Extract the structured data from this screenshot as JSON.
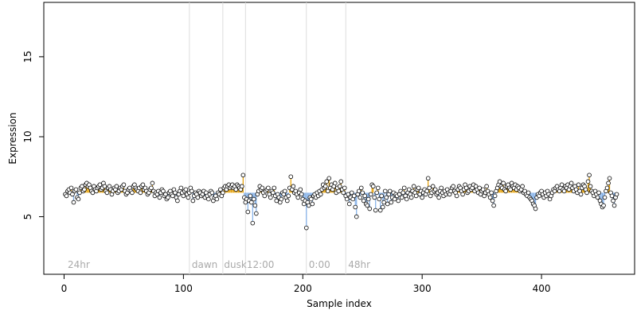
{
  "chart_data": {
    "type": "scatter",
    "xlabel": "Sample index",
    "ylabel": "Expression",
    "xlim": [
      -17,
      478
    ],
    "ylim": [
      1.4,
      18.4
    ],
    "xticks": [
      0,
      100,
      200,
      300,
      400
    ],
    "yticks": [
      5,
      10,
      15
    ],
    "point_color": "#ffffff",
    "point_edge": "#000000",
    "stem_baseline": 6.5,
    "stem_up_color": "#e69f00",
    "stem_down_color": "#7faee8",
    "vlines": [
      105,
      133,
      152,
      203,
      236
    ],
    "vline_color": "#dddddd",
    "annotations": [
      {
        "x": 3,
        "y": 2,
        "label": "24hr"
      },
      {
        "x": 107,
        "y": 2,
        "label": "dawn"
      },
      {
        "x": 134,
        "y": 2,
        "label": "dusk"
      },
      {
        "x": 153,
        "y": 2,
        "label": "12:00"
      },
      {
        "x": 205,
        "y": 2,
        "label": "0:00"
      },
      {
        "x": 238,
        "y": 2,
        "label": "48hr"
      }
    ],
    "x": [
      1,
      2,
      3,
      4,
      5,
      6,
      7,
      8,
      9,
      10,
      11,
      12,
      13,
      14,
      15,
      16,
      17,
      18,
      19,
      20,
      21,
      22,
      23,
      24,
      25,
      26,
      27,
      28,
      29,
      30,
      31,
      32,
      33,
      34,
      35,
      36,
      37,
      38,
      39,
      40,
      41,
      42,
      43,
      44,
      45,
      46,
      47,
      48,
      49,
      50,
      51,
      52,
      53,
      54,
      55,
      56,
      57,
      58,
      59,
      60,
      61,
      62,
      63,
      64,
      65,
      66,
      67,
      68,
      69,
      70,
      71,
      72,
      73,
      74,
      75,
      76,
      77,
      78,
      79,
      80,
      81,
      82,
      83,
      84,
      85,
      86,
      87,
      88,
      89,
      90,
      91,
      92,
      93,
      94,
      95,
      96,
      97,
      98,
      99,
      100,
      101,
      102,
      103,
      104,
      105,
      106,
      107,
      108,
      109,
      110,
      111,
      112,
      113,
      114,
      115,
      116,
      117,
      118,
      119,
      120,
      121,
      122,
      123,
      124,
      125,
      126,
      127,
      128,
      129,
      130,
      131,
      132,
      133,
      134,
      135,
      136,
      137,
      138,
      139,
      140,
      141,
      142,
      143,
      144,
      145,
      146,
      147,
      148,
      149,
      150,
      151,
      152,
      153,
      154,
      155,
      156,
      157,
      158,
      159,
      160,
      161,
      162,
      163,
      164,
      165,
      166,
      167,
      168,
      169,
      170,
      171,
      172,
      173,
      174,
      175,
      176,
      177,
      178,
      179,
      180,
      181,
      182,
      183,
      184,
      185,
      186,
      187,
      188,
      189,
      190,
      191,
      192,
      193,
      194,
      195,
      196,
      197,
      198,
      199,
      200,
      201,
      202,
      203,
      204,
      205,
      206,
      207,
      208,
      209,
      210,
      211,
      212,
      213,
      214,
      215,
      216,
      217,
      218,
      219,
      220,
      221,
      222,
      223,
      224,
      225,
      226,
      227,
      228,
      229,
      230,
      231,
      232,
      233,
      234,
      235,
      236,
      237,
      238,
      239,
      240,
      241,
      242,
      243,
      244,
      245,
      246,
      247,
      248,
      249,
      250,
      251,
      252,
      253,
      254,
      255,
      256,
      257,
      258,
      259,
      260,
      261,
      262,
      263,
      264,
      265,
      266,
      267,
      268,
      269,
      270,
      271,
      272,
      273,
      274,
      275,
      276,
      277,
      278,
      279,
      280,
      281,
      282,
      283,
      284,
      285,
      286,
      287,
      288,
      289,
      290,
      291,
      292,
      293,
      294,
      295,
      296,
      297,
      298,
      299,
      300,
      301,
      302,
      303,
      304,
      305,
      306,
      307,
      308,
      309,
      310,
      311,
      312,
      313,
      314,
      315,
      316,
      317,
      318,
      319,
      320,
      321,
      322,
      323,
      324,
      325,
      326,
      327,
      328,
      329,
      330,
      331,
      332,
      333,
      334,
      335,
      336,
      337,
      338,
      339,
      340,
      341,
      342,
      343,
      344,
      345,
      346,
      347,
      348,
      349,
      350,
      351,
      352,
      353,
      354,
      355,
      356,
      357,
      358,
      359,
      360,
      361,
      362,
      363,
      364,
      365,
      366,
      367,
      368,
      369,
      370,
      371,
      372,
      373,
      374,
      375,
      376,
      377,
      378,
      379,
      380,
      381,
      382,
      383,
      384,
      385,
      386,
      387,
      388,
      389,
      390,
      391,
      392,
      393,
      394,
      395,
      396,
      397,
      398,
      399,
      400,
      401,
      402,
      403,
      404,
      405,
      406,
      407,
      408,
      409,
      410,
      411,
      412,
      413,
      414,
      415,
      416,
      417,
      418,
      419,
      420,
      421,
      422,
      423,
      424,
      425,
      426,
      427,
      428,
      429,
      430,
      431,
      432,
      433,
      434,
      435,
      436,
      437,
      438,
      439,
      440,
      441,
      442,
      443,
      444,
      445,
      446,
      447,
      448,
      449,
      450,
      451,
      452,
      453,
      454,
      455,
      456,
      457,
      458,
      459,
      460,
      461,
      462,
      463
    ],
    "values": [
      6.4,
      6.3,
      6.6,
      6.7,
      6.5,
      6.8,
      6.4,
      5.9,
      6.6,
      6.7,
      6.2,
      6.1,
      6.5,
      6.8,
      6.9,
      6.6,
      6.7,
      7.0,
      7.1,
      6.9,
      7.0,
      6.8,
      6.6,
      6.5,
      6.9,
      6.7,
      6.6,
      6.8,
      6.9,
      7.0,
      6.7,
      6.8,
      7.1,
      6.9,
      6.6,
      6.5,
      6.8,
      6.9,
      6.7,
      6.4,
      6.6,
      6.8,
      6.7,
      6.9,
      6.5,
      6.6,
      6.8,
      6.7,
      6.9,
      7.0,
      6.6,
      6.4,
      6.5,
      6.7,
      6.8,
      6.6,
      6.5,
      6.9,
      7.0,
      6.8,
      6.7,
      6.6,
      6.8,
      6.5,
      6.9,
      7.0,
      6.7,
      6.8,
      6.6,
      6.4,
      6.5,
      6.7,
      6.8,
      7.1,
      6.6,
      6.3,
      6.5,
      6.4,
      6.6,
      6.2,
      6.5,
      6.7,
      6.6,
      6.3,
      6.4,
      6.1,
      6.2,
      6.5,
      6.6,
      6.4,
      6.3,
      6.7,
      6.5,
      6.2,
      6.0,
      6.4,
      6.6,
      6.8,
      6.5,
      6.3,
      6.6,
      6.7,
      6.4,
      6.2,
      6.5,
      6.8,
      6.6,
      6.0,
      6.3,
      6.5,
      6.4,
      6.2,
      6.6,
      6.5,
      6.3,
      6.4,
      6.6,
      6.2,
      6.5,
      6.3,
      6.1,
      6.4,
      6.6,
      6.5,
      6.0,
      6.2,
      6.3,
      6.1,
      6.5,
      6.4,
      6.7,
      6.3,
      6.5,
      6.8,
      6.9,
      6.7,
      6.9,
      7.0,
      6.8,
      6.9,
      7.0,
      6.8,
      6.9,
      6.7,
      7.0,
      6.9,
      6.8,
      6.7,
      6.9,
      7.6,
      6.2,
      5.9,
      6.1,
      5.3,
      6.0,
      6.3,
      5.9,
      4.6,
      6.1,
      5.7,
      5.2,
      6.4,
      6.6,
      6.9,
      6.7,
      6.8,
      6.5,
      6.3,
      6.6,
      6.7,
      6.8,
      6.4,
      6.2,
      6.6,
      6.5,
      6.8,
      6.3,
      6.0,
      6.4,
      6.2,
      5.9,
      6.1,
      6.5,
      6.4,
      6.6,
      6.2,
      6.0,
      6.3,
      6.8,
      7.5,
      6.7,
      6.9,
      6.5,
      6.6,
      6.4,
      6.2,
      6.5,
      6.7,
      6.4,
      6.1,
      5.8,
      6.0,
      4.3,
      5.9,
      5.7,
      6.2,
      6.1,
      5.8,
      6.3,
      6.4,
      6.2,
      6.5,
      6.3,
      6.6,
      6.4,
      6.7,
      7.0,
      6.8,
      6.9,
      7.2,
      6.6,
      7.4,
      6.8,
      7.0,
      6.7,
      6.9,
      7.1,
      6.5,
      6.8,
      6.6,
      6.9,
      7.2,
      6.7,
      6.5,
      6.8,
      6.3,
      6.1,
      6.4,
      5.8,
      6.2,
      6.5,
      6.1,
      6.3,
      5.6,
      5.0,
      6.4,
      6.6,
      6.2,
      6.8,
      6.5,
      6.0,
      6.3,
      5.8,
      5.7,
      6.1,
      5.5,
      6.4,
      7.0,
      6.9,
      6.2,
      5.4,
      6.5,
      6.8,
      6.1,
      5.4,
      6.3,
      5.6,
      5.9,
      6.6,
      6.2,
      5.8,
      6.4,
      6.6,
      5.9,
      6.2,
      6.5,
      6.1,
      6.4,
      6.3,
      6.0,
      6.4,
      6.6,
      6.2,
      6.5,
      6.8,
      6.3,
      6.1,
      6.5,
      6.7,
      6.4,
      6.2,
      6.6,
      6.9,
      6.5,
      6.3,
      6.7,
      6.8,
      6.4,
      6.6,
      6.2,
      6.5,
      6.7,
      6.4,
      6.6,
      7.4,
      6.8,
      6.3,
      6.5,
      6.9,
      6.6,
      6.7,
      6.4,
      6.5,
      6.2,
      6.6,
      6.8,
      6.5,
      6.3,
      6.6,
      6.4,
      6.7,
      6.5,
      6.4,
      6.6,
      6.8,
      6.9,
      6.6,
      6.5,
      6.3,
      6.7,
      6.9,
      6.8,
      6.6,
      6.4,
      6.7,
      7.0,
      6.8,
      6.5,
      6.6,
      6.9,
      6.7,
      6.8,
      7.0,
      6.6,
      6.9,
      6.7,
      6.5,
      6.8,
      6.4,
      6.6,
      6.7,
      6.3,
      6.5,
      6.9,
      6.6,
      6.4,
      6.2,
      6.5,
      6.0,
      5.7,
      6.3,
      6.6,
      6.8,
      7.0,
      7.2,
      6.9,
      6.8,
      7.1,
      6.7,
      6.6,
      6.9,
      7.0,
      6.8,
      6.7,
      7.1,
      6.9,
      6.8,
      7.0,
      6.7,
      6.9,
      6.8,
      6.6,
      6.7,
      6.9,
      6.5,
      6.6,
      6.4,
      6.3,
      6.5,
      6.2,
      6.1,
      6.0,
      5.8,
      5.7,
      5.5,
      6.2,
      6.4,
      6.3,
      6.5,
      6.6,
      6.4,
      6.2,
      6.5,
      6.3,
      6.6,
      6.4,
      6.1,
      6.3,
      6.5,
      6.7,
      6.6,
      6.8,
      6.9,
      6.7,
      6.6,
      6.8,
      7.0,
      6.7,
      6.6,
      6.9,
      6.8,
      7.0,
      6.7,
      6.9,
      7.1,
      6.8,
      6.6,
      6.9,
      6.7,
      6.5,
      7.0,
      6.6,
      6.4,
      6.8,
      7.0,
      6.9,
      6.7,
      6.5,
      7.2,
      7.6,
      6.9,
      6.6,
      6.5,
      6.3,
      6.6,
      6.4,
      6.2,
      6.5,
      6.0,
      5.8,
      5.6,
      5.7,
      6.2,
      6.6,
      6.8,
      7.1,
      7.4,
      6.5,
      6.3,
      6.0,
      5.7,
      6.2,
      6.4
    ]
  }
}
